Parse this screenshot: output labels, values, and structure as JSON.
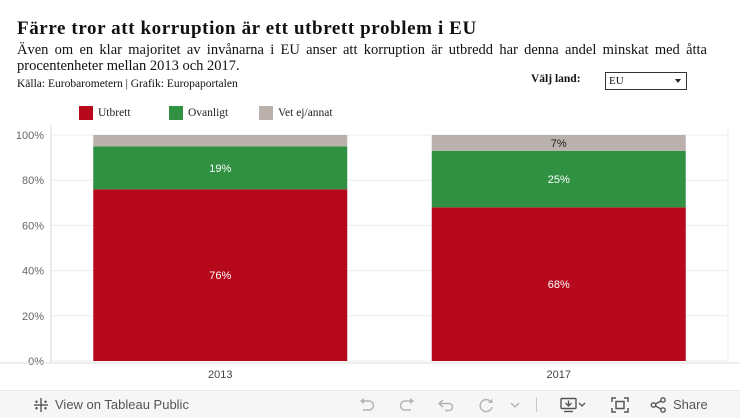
{
  "header": {
    "title": "Färre tror att korruption är ett utbrett problem i EU",
    "subtitle": "Även om en klar majoritet av invånarna i EU anser att korruption är utbredd har denna andel minskat med åtta procentenheter mellan 2013 och 2017.",
    "source": "Källa: Eurobarometern | Grafik: Europaportalen"
  },
  "filter": {
    "label": "Välj land:",
    "selected": "EU"
  },
  "legend": [
    {
      "label": "Utbrett",
      "color": "#b60a1c"
    },
    {
      "label": "Ovanligt",
      "color": "#309143"
    },
    {
      "label": "Vet ej/annat",
      "color": "#bab0ac"
    }
  ],
  "chart_data": {
    "type": "bar",
    "stacked": true,
    "categories": [
      "2013",
      "2017"
    ],
    "series": [
      {
        "name": "Utbrett",
        "values": [
          76,
          68
        ],
        "labels": [
          "76%",
          "68%"
        ],
        "color": "#b60a1c",
        "label_color": "#ffffff"
      },
      {
        "name": "Ovanligt",
        "values": [
          19,
          25
        ],
        "labels": [
          "19%",
          "25%"
        ],
        "color": "#309143",
        "label_color": "#ffffff"
      },
      {
        "name": "Vet ej/annat",
        "values": [
          5,
          7
        ],
        "labels": [
          "",
          "7%"
        ],
        "color": "#bab0ac",
        "label_color": "#222222"
      }
    ],
    "ylim": [
      0,
      100
    ],
    "yticks": [
      0,
      20,
      40,
      60,
      80,
      100
    ],
    "ytick_labels": [
      "0%",
      "20%",
      "40%",
      "60%",
      "80%",
      "100%"
    ],
    "grid": true,
    "legend_position": "top-left"
  },
  "toolbar": {
    "view_label": "View on Tableau Public",
    "share_label": "Share"
  }
}
